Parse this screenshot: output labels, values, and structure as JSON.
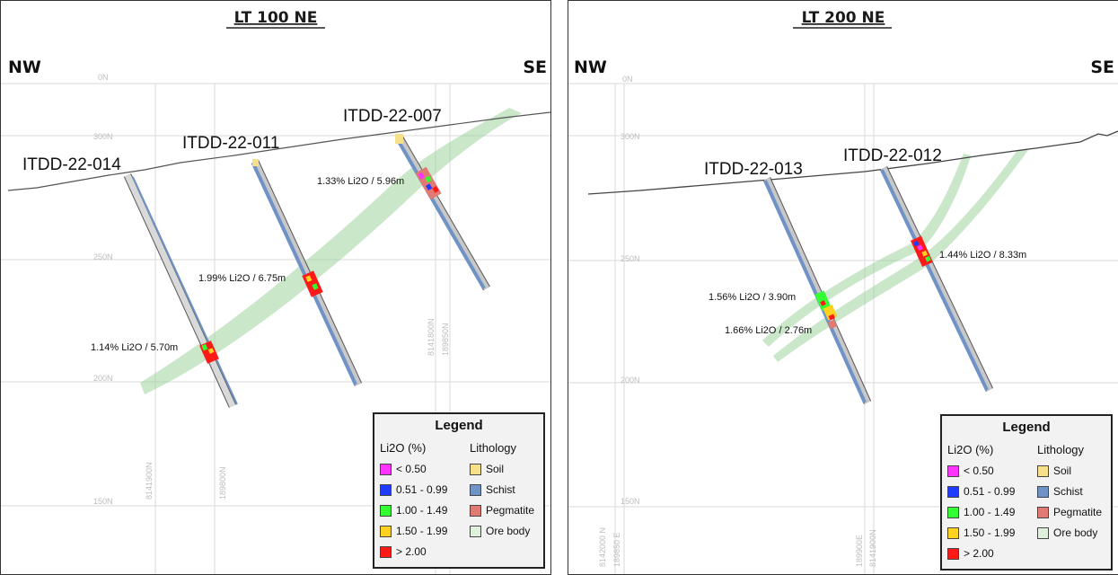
{
  "panels": [
    {
      "title": "LT 100 NE",
      "dir_left": "NW",
      "dir_right": "SE",
      "elevation_labels": [
        "0N",
        "300N",
        "250N",
        "200N",
        "150N"
      ],
      "grid_labels": [
        "8141900N",
        "189800N",
        "8141800N",
        "189850N"
      ],
      "holes": [
        "ITDD-22-014",
        "ITDD-22-011",
        "ITDD-22-007"
      ],
      "intercepts": [
        "1.33% Li2O / 5.96m",
        "1.99% Li2O / 6.75m",
        "1.14% Li2O / 5.70m"
      ]
    },
    {
      "title": "LT 200 NE",
      "dir_left": "NW",
      "dir_right": "SE",
      "elevation_labels": [
        "0N",
        "300N",
        "250N",
        "200N",
        "150N"
      ],
      "grid_labels": [
        "8142000 N",
        "189850 E",
        "189900E",
        "8141900N"
      ],
      "holes": [
        "ITDD-22-013",
        "ITDD-22-012"
      ],
      "intercepts": [
        "1.44% Li2O / 8.33m",
        "1.56% Li2O / 3.90m",
        "1.66% Li2O / 2.76m"
      ]
    }
  ],
  "legend": {
    "title": "Legend",
    "li2o_header": "Li2O (%)",
    "lithology_header": "Lithology",
    "li2o_items": [
      {
        "label": "< 0.50",
        "color": "#ff33ff"
      },
      {
        "label": "0.51 - 0.99",
        "color": "#1f3cff"
      },
      {
        "label": "1.00 - 1.49",
        "color": "#33ff33"
      },
      {
        "label": "1.50 - 1.99",
        "color": "#ffd21f"
      },
      {
        "label": "> 2.00",
        "color": "#ff1a1a"
      }
    ],
    "lithology_items": [
      {
        "label": "Soil",
        "color": "#f7e08a"
      },
      {
        "label": "Schist",
        "color": "#6f93c7"
      },
      {
        "label": "Pegmatite",
        "color": "#e07a72"
      },
      {
        "label": "Ore body",
        "color": "#dff0dc"
      }
    ]
  },
  "colors": {
    "ore_body": "#9fd39f",
    "schist": "#6f93c7",
    "hole_core": "#c8c8c8",
    "grid": "#d9d9d9"
  }
}
